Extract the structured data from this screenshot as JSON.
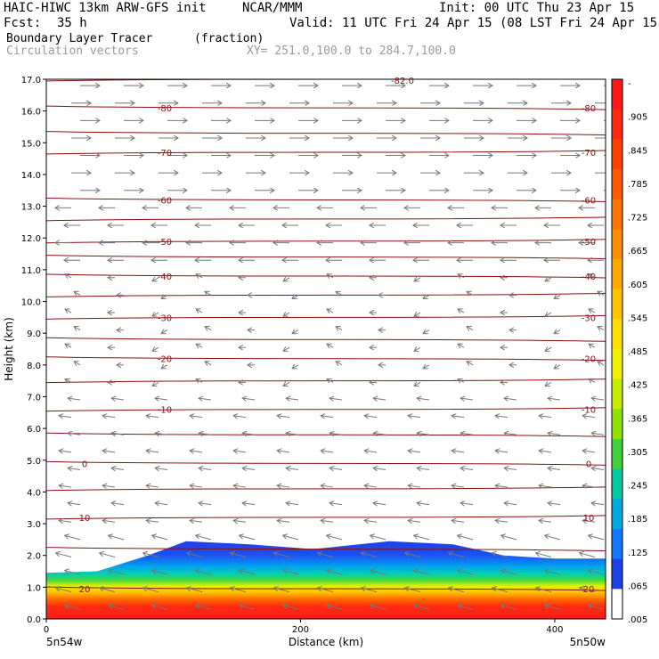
{
  "header": {
    "model": "HAIC-HIWC 13km ARW-GFS init",
    "org": "NCAR/MMM",
    "init": "Init: 00 UTC Thu 23 Apr 15",
    "fcst_label": "Fcst:",
    "fcst_value": "35 h",
    "valid": "Valid: 11 UTC Fri 24 Apr 15 (08 LST Fri 24 Apr 15)",
    "field": "Boundary Layer Tracer",
    "units": "(fraction)",
    "vectors": "Circulation vectors",
    "xy": "XY= 251.0,100.0 to 284.7,100.0"
  },
  "axes": {
    "xlabel": "Distance (km)",
    "ylabel": "Height (km)",
    "left_loc": "5n54w",
    "right_loc": "5n50w"
  },
  "chart_data": {
    "type": "heatmap",
    "x_range": [
      0,
      440
    ],
    "y_range": [
      0,
      17
    ],
    "x_ticks": [
      "0",
      "200",
      "400"
    ],
    "x_tick_values": [
      0,
      200,
      400
    ],
    "y_ticks": [
      "0.0",
      "1.0",
      "2.0",
      "3.0",
      "4.0",
      "5.0",
      "6.0",
      "7.0",
      "8.0",
      "9.0",
      "10.0",
      "11.0",
      "12.0",
      "13.0",
      "14.0",
      "15.0",
      "16.0",
      "17.0"
    ],
    "colorbar": {
      "labels": [
        "-",
        ".905",
        ".845",
        ".785",
        ".725",
        ".665",
        ".605",
        ".545",
        ".485",
        ".425",
        ".365",
        ".305",
        ".245",
        ".185",
        ".125",
        ".065",
        ".005"
      ],
      "colors": [
        "#ff1a1a",
        "#ff2a10",
        "#ff4000",
        "#ff5a00",
        "#ff7400",
        "#ff8e00",
        "#ffa800",
        "#ffc400",
        "#ffe000",
        "#f2f000",
        "#c8ec00",
        "#90e000",
        "#40d040",
        "#00c8a0",
        "#00a8e0",
        "#1478ff",
        "#1e40e8",
        "#ffffff"
      ]
    },
    "tracer_layer": {
      "top_height_km": [
        {
          "x": 0,
          "y": 1.45
        },
        {
          "x": 40,
          "y": 1.5
        },
        {
          "x": 80,
          "y": 2.0
        },
        {
          "x": 110,
          "y": 2.45
        },
        {
          "x": 160,
          "y": 2.35
        },
        {
          "x": 210,
          "y": 2.2
        },
        {
          "x": 270,
          "y": 2.45
        },
        {
          "x": 320,
          "y": 2.35
        },
        {
          "x": 360,
          "y": 2.0
        },
        {
          "x": 400,
          "y": 1.9
        },
        {
          "x": 440,
          "y": 1.9
        }
      ]
    },
    "isotherms": [
      {
        "label": "-80",
        "y": 16.1
      },
      {
        "label": "-70",
        "y": 14.7
      },
      {
        "label": "-60",
        "y": 13.2
      },
      {
        "label": "-50",
        "y": 11.9
      },
      {
        "label": "-40",
        "y": 10.8
      },
      {
        "label": "-30",
        "y": 9.5
      },
      {
        "label": "-20",
        "y": 8.2
      },
      {
        "label": "-10",
        "y": 6.6
      },
      {
        "label": "0",
        "y": 4.9
      },
      {
        "label": "10",
        "y": 3.2
      },
      {
        "label": "20",
        "y": 0.95
      }
    ],
    "extra_isotherm_levels_km": [
      17.0,
      15.3,
      12.6,
      11.4,
      10.2,
      8.8,
      7.5,
      5.8,
      4.1,
      2.2
    ],
    "top_label": "-82.0",
    "grid": false
  }
}
